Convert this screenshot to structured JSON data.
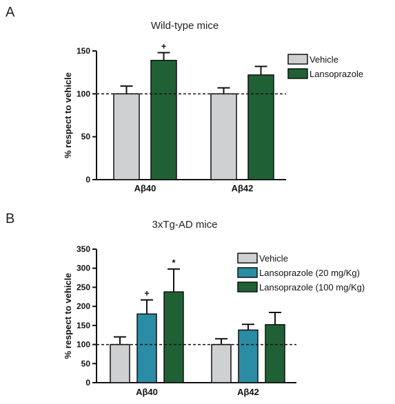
{
  "panels": {
    "a": {
      "letter": "A"
    },
    "b": {
      "letter": "B"
    }
  },
  "colors": {
    "vehicle": "#cfd0d2",
    "lanso20": "#2b8ca5",
    "lanso": "#1f6135",
    "axis": "#111111"
  },
  "chart_data": [
    {
      "type": "bar",
      "title": "Wild-type mice",
      "ylabel": "% respect to vehicle",
      "xlabel": "",
      "ylim": [
        0,
        150
      ],
      "yticks": [
        0,
        50,
        100,
        150
      ],
      "categories": [
        "Aβ40",
        "Aβ42"
      ],
      "reference_line": 100,
      "legend_position": "top-right",
      "series": [
        {
          "name": "Vehicle",
          "color_key": "vehicle",
          "values": [
            100,
            100
          ],
          "errors": [
            9,
            7
          ],
          "annotations": [
            "",
            ""
          ]
        },
        {
          "name": "Lansoprazole",
          "color_key": "lanso",
          "values": [
            139,
            122
          ],
          "errors": [
            9,
            10
          ],
          "annotations": [
            "+",
            ""
          ]
        }
      ]
    },
    {
      "type": "bar",
      "title": "3xTg-AD mice",
      "ylabel": "% respect to vehicle",
      "xlabel": "",
      "ylim": [
        0,
        350
      ],
      "yticks": [
        0,
        50,
        100,
        150,
        200,
        250,
        300,
        350
      ],
      "categories": [
        "Aβ40",
        "Aβ42"
      ],
      "reference_line": 100,
      "legend_position": "top-right",
      "series": [
        {
          "name": "Vehicle",
          "color_key": "vehicle",
          "values": [
            100,
            100
          ],
          "errors": [
            20,
            15
          ],
          "annotations": [
            "",
            ""
          ]
        },
        {
          "name": "Lansoprazole (20 mg/Kg)",
          "color_key": "lanso20",
          "values": [
            180,
            138
          ],
          "errors": [
            37,
            15
          ],
          "annotations": [
            "+",
            ""
          ]
        },
        {
          "name": "Lansoprazole (100 mg/Kg)",
          "color_key": "lanso",
          "values": [
            238,
            152
          ],
          "errors": [
            60,
            32
          ],
          "annotations": [
            "*",
            ""
          ]
        }
      ]
    }
  ]
}
